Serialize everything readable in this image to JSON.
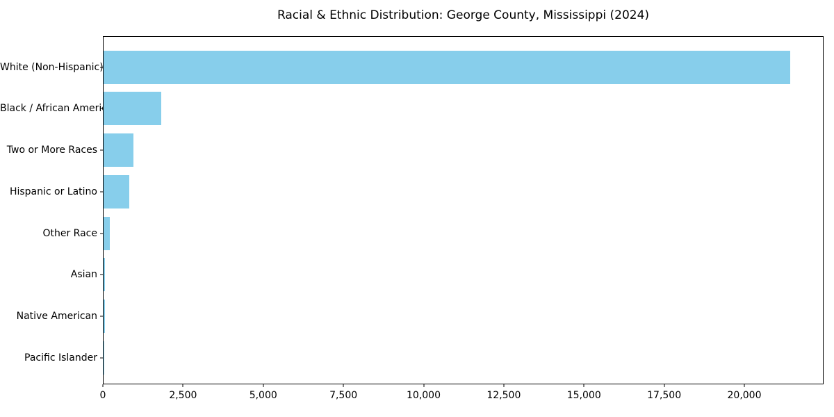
{
  "chart_data": {
    "type": "bar",
    "orientation": "horizontal",
    "title": "Racial & Ethnic Distribution: George County, Mississippi (2024)",
    "xlabel": "",
    "ylabel": "",
    "categories": [
      "White (Non-Hispanic)",
      "Black / African American",
      "Two or More Races",
      "Hispanic or Latino",
      "Other Race",
      "Asian",
      "Native American",
      "Pacific Islander"
    ],
    "values": [
      21400,
      1800,
      930,
      800,
      200,
      40,
      40,
      10
    ],
    "xlim": [
      0,
      22470
    ],
    "xticks": {
      "values": [
        0,
        2500,
        5000,
        7500,
        10000,
        12500,
        15000,
        17500,
        20000
      ],
      "labels": [
        "0",
        "2,500",
        "5,000",
        "7,500",
        "10,000",
        "12,500",
        "15,000",
        "17,500",
        "20,000"
      ]
    },
    "grid": false,
    "legend": "none",
    "bar_color": "#87CEEB",
    "text_color": "#000000",
    "spine_color": "#000000"
  }
}
